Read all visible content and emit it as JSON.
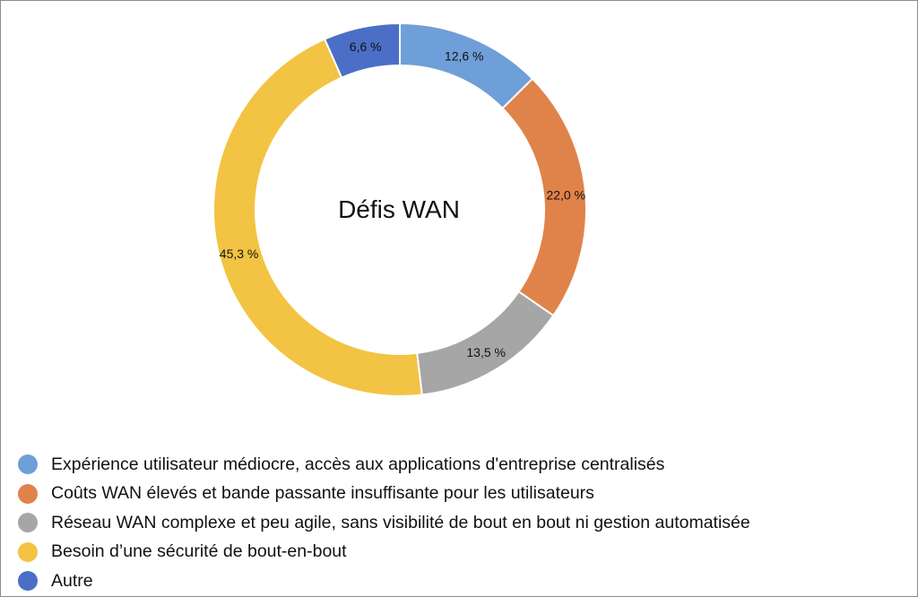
{
  "chart_data": {
    "type": "pie",
    "style": "donut",
    "title": "Défis WAN",
    "legend_position": "bottom-left",
    "series": [
      {
        "name": "Expérience utilisateur médiocre, accès aux applications d'entreprise centralisés",
        "value": 12.6,
        "label": "12,6 %",
        "color": "#6f9fd8"
      },
      {
        "name": "Coûts WAN élevés et bande passante insuffisante pour les utilisateurs",
        "value": 22.0,
        "label": "22,0 %",
        "color": "#e0834a"
      },
      {
        "name": "Réseau WAN complexe et peu agile, sans visibilité de bout en bout ni gestion automatisée",
        "value": 13.5,
        "label": "13,5 %",
        "color": "#a6a6a6"
      },
      {
        "name": "Besoin d’une sécurité de bout-en-bout",
        "value": 45.3,
        "label": "45,3 %",
        "color": "#f3c343"
      },
      {
        "name": "Autre",
        "value": 6.6,
        "label": "6,6 %",
        "color": "#4b6fc6"
      }
    ]
  }
}
